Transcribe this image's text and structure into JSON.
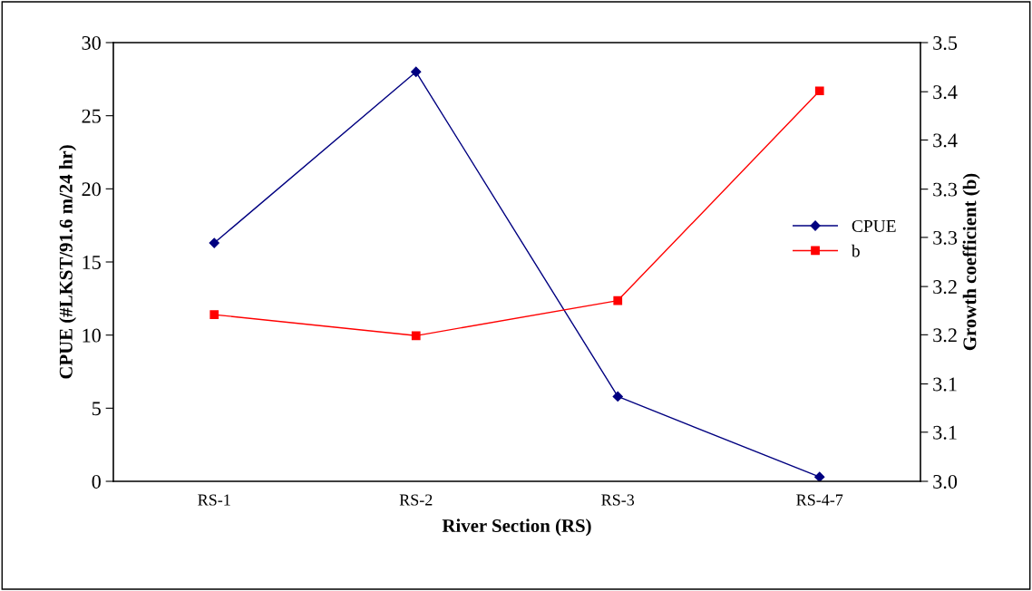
{
  "chart_data": {
    "type": "line",
    "xlabel": "River Section (RS)",
    "ylabel": "CPUE (#LKST/91.6 m/24 hr)",
    "y2label": "Growth coefficient (b)",
    "categories": [
      "RS-1",
      "RS-2",
      "RS-3",
      "RS-4-7"
    ],
    "series": [
      {
        "name": "CPUE",
        "color": "#000080",
        "marker": "diamond",
        "values": [
          16.3,
          28.0,
          5.8,
          0.3
        ]
      },
      {
        "name": "b",
        "color": "#ff0000",
        "marker": "square",
        "axis": "y2",
        "values": [
          3.19,
          3.166,
          3.206,
          3.445
        ]
      }
    ],
    "ylim": [
      0,
      30
    ],
    "yticks": [
      0,
      5,
      10,
      15,
      20,
      25,
      30
    ],
    "y2lim": [
      3.0,
      3.5
    ],
    "y2ticks": [
      {
        "value": 3.0,
        "label": "3.0"
      },
      {
        "value": 3.056,
        "label": "3.1"
      },
      {
        "value": 3.111,
        "label": "3.1"
      },
      {
        "value": 3.167,
        "label": "3.2"
      },
      {
        "value": 3.222,
        "label": "3.2"
      },
      {
        "value": 3.278,
        "label": "3.3"
      },
      {
        "value": 3.333,
        "label": "3.3"
      },
      {
        "value": 3.389,
        "label": "3.4"
      },
      {
        "value": 3.444,
        "label": "3.4"
      },
      {
        "value": 3.5,
        "label": "3.5"
      }
    ],
    "legend": "right",
    "grid": false
  }
}
